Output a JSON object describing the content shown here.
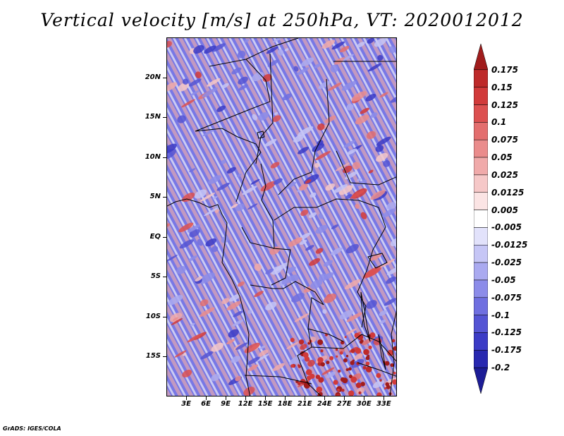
{
  "title": "Vertical velocity [m/s] at 250hPa, VT: 2020012012",
  "credit": "GrADS: IGES/COLA",
  "map": {
    "lat_range": [
      -20,
      25
    ],
    "lon_range": [
      0,
      35
    ],
    "lat_ticks": [
      {
        "value": 20,
        "label": "20N"
      },
      {
        "value": 15,
        "label": "15N"
      },
      {
        "value": 10,
        "label": "10N"
      },
      {
        "value": 5,
        "label": "5N"
      },
      {
        "value": 0,
        "label": "EQ"
      },
      {
        "value": -5,
        "label": "5S"
      },
      {
        "value": -10,
        "label": "10S"
      },
      {
        "value": -15,
        "label": "15S"
      }
    ],
    "lon_ticks": [
      {
        "value": 3,
        "label": "3E"
      },
      {
        "value": 6,
        "label": "6E"
      },
      {
        "value": 9,
        "label": "9E"
      },
      {
        "value": 12,
        "label": "12E"
      },
      {
        "value": 15,
        "label": "15E"
      },
      {
        "value": 18,
        "label": "18E"
      },
      {
        "value": 21,
        "label": "21E"
      },
      {
        "value": 24,
        "label": "24E"
      },
      {
        "value": 27,
        "label": "27E"
      },
      {
        "value": 30,
        "label": "30E"
      },
      {
        "value": 33,
        "label": "33E"
      }
    ]
  },
  "colorbar": {
    "levels": [
      "0.175",
      "0.15",
      "0.125",
      "0.1",
      "0.075",
      "0.05",
      "0.025",
      "0.0125",
      "0.005",
      "-0.005",
      "-0.0125",
      "-0.025",
      "-0.05",
      "-0.075",
      "-0.1",
      "-0.125",
      "-0.175",
      "-0.2"
    ],
    "colors": [
      "#a01c1c",
      "#be2a2a",
      "#d13a3a",
      "#dc5050",
      "#e36e6e",
      "#ea8c8c",
      "#f0aaaa",
      "#f6c8c8",
      "#fbe4e4",
      "#ffffff",
      "#e2e2fb",
      "#c6c6f6",
      "#aaaaf0",
      "#8c8ce9",
      "#6f6fe0",
      "#5454d4",
      "#3b3bc6",
      "#2828b0",
      "#1c1c96"
    ]
  }
}
